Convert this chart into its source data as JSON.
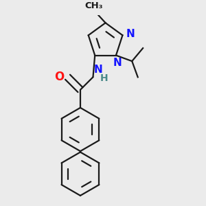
{
  "bg_color": "#ebebeb",
  "bond_color": "#1a1a1a",
  "N_color": "#1414ff",
  "O_color": "#ff1414",
  "H_color": "#4a8a8a",
  "line_width": 1.6,
  "dbo": 0.018,
  "font_size": 11,
  "fig_size": [
    3.0,
    3.0
  ],
  "dpi": 100,
  "xlim": [
    0.05,
    0.95
  ],
  "ylim": [
    0.02,
    1.02
  ]
}
